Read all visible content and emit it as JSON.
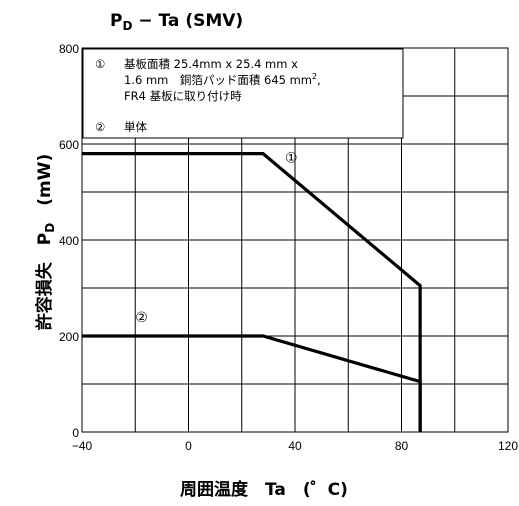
{
  "chart_data": {
    "type": "line",
    "title_main": "P",
    "title_sub": "D",
    "title_rest": " − Ta (SMV)",
    "xlabel": "周囲温度　Ta　(゜C)",
    "ylabel_main": "許容損失　P",
    "ylabel_sub": "D",
    "ylabel_unit": "(mW)",
    "xlim": [
      -40,
      120
    ],
    "ylim": [
      0,
      800
    ],
    "x_ticks": [
      -40,
      0,
      40,
      80,
      120
    ],
    "x_tick_labels": [
      "−40",
      "0",
      "40",
      "80",
      "120"
    ],
    "y_ticks": [
      0,
      200,
      400,
      600,
      800
    ],
    "y_tick_labels": [
      "0",
      "200",
      "400",
      "600",
      "800"
    ],
    "grid": true,
    "series": [
      {
        "name": "①",
        "points": [
          [
            -40,
            580
          ],
          [
            28,
            580
          ],
          [
            87,
            305
          ],
          [
            87,
            0
          ]
        ]
      },
      {
        "name": "②",
        "points": [
          [
            -40,
            200
          ],
          [
            28,
            200
          ],
          [
            87,
            105
          ],
          [
            87,
            0
          ]
        ]
      }
    ],
    "legend": {
      "items": [
        {
          "marker": "①",
          "line1": "基板面積 25.4mm x 25.4 mm x",
          "line2_before": "1.6 mm　銅箔パッド面積 645 mm",
          "line2_sup": "2",
          "line2_after": ",",
          "line3": "FR4 基板に取り付け時"
        },
        {
          "marker": "②",
          "line1": "単体"
        }
      ]
    }
  }
}
